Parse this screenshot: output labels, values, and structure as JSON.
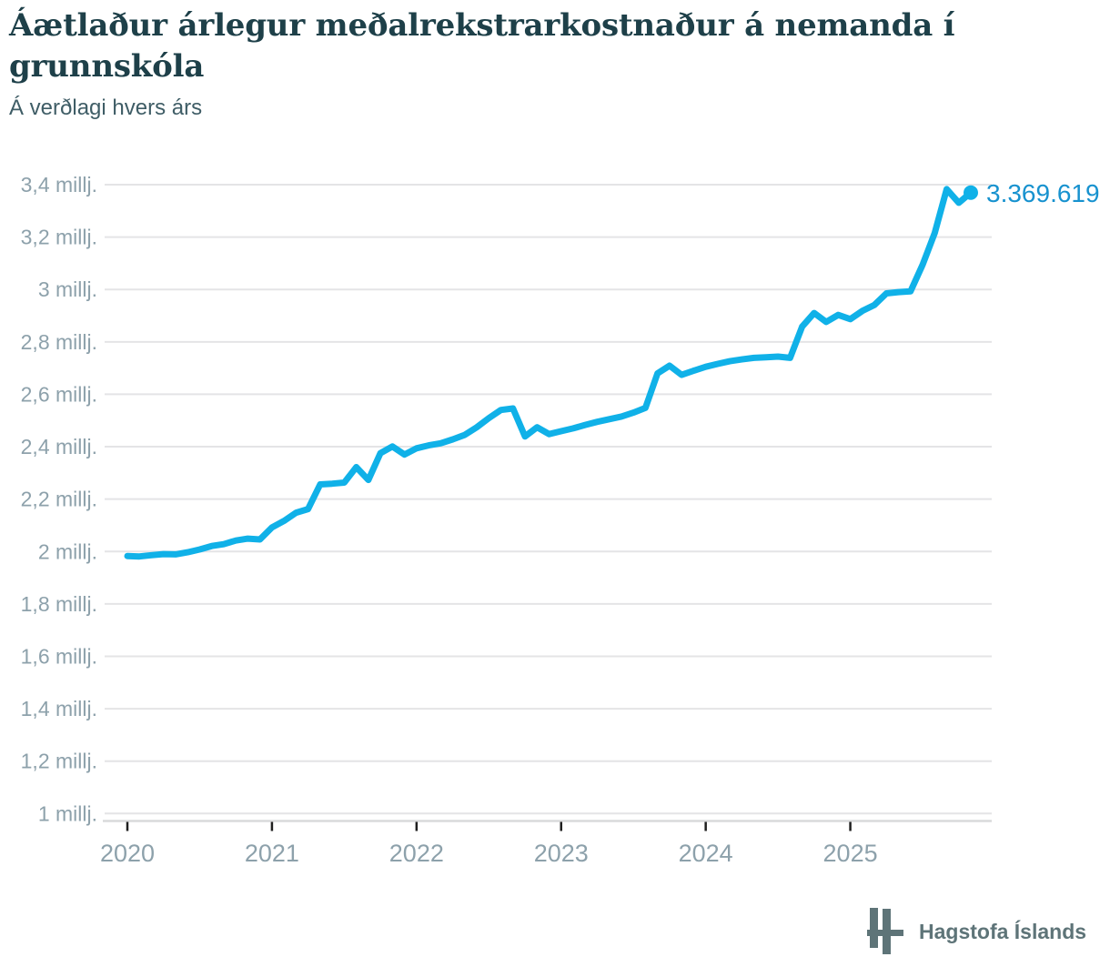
{
  "header": {
    "title": "Áætlaður árlegur meðalrekstrarkostnaður á nemanda í grunnskóla",
    "subtitle": "Á verðlagi hvers árs"
  },
  "footer": {
    "brand": "Hagstofa Íslands",
    "logo": "hagstofa-islands-h-mark"
  },
  "colors": {
    "line": "#10b1e8",
    "value_label": "#1792cf",
    "grid": "#e4e4e6",
    "axis_line": "#d9dadb",
    "tick": "#1f1f1f",
    "axis_label": "#8da1ab",
    "title": "#1e4049",
    "subtitle": "#3f5d66",
    "brand": "#5e7478"
  },
  "chart_data": {
    "type": "line",
    "title": "Áætlaður árlegur meðalrekstrarkostnaður á nemanda í grunnskóla",
    "subtitle": "Á verðlagi hvers árs",
    "y_unit": "millj.",
    "grid": true,
    "legend": false,
    "ylim": [
      1.0,
      3.4
    ],
    "y_tick_values": [
      3.4,
      3.2,
      3.0,
      2.8,
      2.6,
      2.4,
      2.2,
      2.0,
      1.8,
      1.6,
      1.4,
      1.2,
      1.0
    ],
    "y_tick_labels": [
      "3,4 millj.",
      "3,2 millj.",
      "3 millj.",
      "2,8 millj.",
      "2,6 millj.",
      "2,4 millj.",
      "2,2 millj.",
      "2 millj.",
      "1,8 millj.",
      "1,6 millj.",
      "1,4 millj.",
      "1,2 millj.",
      "1 millj."
    ],
    "x_tick_labels": [
      "2020",
      "2021",
      "2022",
      "2023",
      "2024",
      "2025"
    ],
    "x": [
      "2020-01",
      "2020-02",
      "2020-03",
      "2020-04",
      "2020-05",
      "2020-06",
      "2020-07",
      "2020-08",
      "2020-09",
      "2020-10",
      "2020-11",
      "2020-12",
      "2021-01",
      "2021-02",
      "2021-03",
      "2021-04",
      "2021-05",
      "2021-06",
      "2021-07",
      "2021-08",
      "2021-09",
      "2021-10",
      "2021-11",
      "2021-12",
      "2022-01",
      "2022-02",
      "2022-03",
      "2022-04",
      "2022-05",
      "2022-06",
      "2022-07",
      "2022-08",
      "2022-09",
      "2022-10",
      "2022-11",
      "2022-12",
      "2023-01",
      "2023-02",
      "2023-03",
      "2023-04",
      "2023-05",
      "2023-06",
      "2023-07",
      "2023-08",
      "2023-09",
      "2023-10",
      "2023-11",
      "2023-12",
      "2024-01",
      "2024-02",
      "2024-03",
      "2024-04",
      "2024-05",
      "2024-06",
      "2024-07",
      "2024-08",
      "2024-09",
      "2024-10",
      "2024-11",
      "2024-12",
      "2025-01",
      "2025-02",
      "2025-03",
      "2025-04",
      "2025-05",
      "2025-06",
      "2025-07",
      "2025-08",
      "2025-09",
      "2025-10",
      "2025-11"
    ],
    "series": [
      {
        "name": "Áætlaður árlegur meðalrekstrarkostnaður á nemanda í grunnskóla (millj. kr.)",
        "values": [
          1.983,
          1.981,
          1.986,
          1.99,
          1.989,
          1.997,
          2.008,
          2.021,
          2.028,
          2.042,
          2.049,
          2.046,
          2.092,
          2.117,
          2.148,
          2.162,
          2.256,
          2.259,
          2.263,
          2.322,
          2.273,
          2.375,
          2.401,
          2.37,
          2.394,
          2.405,
          2.413,
          2.428,
          2.445,
          2.474,
          2.509,
          2.54,
          2.546,
          2.439,
          2.474,
          2.448,
          2.459,
          2.47,
          2.483,
          2.495,
          2.505,
          2.515,
          2.53,
          2.548,
          2.68,
          2.709,
          2.674,
          2.69,
          2.705,
          2.716,
          2.726,
          2.733,
          2.739,
          2.741,
          2.744,
          2.739,
          2.858,
          2.91,
          2.876,
          2.903,
          2.887,
          2.918,
          2.941,
          2.985,
          2.99,
          2.993,
          3.094,
          3.215,
          3.383,
          3.331,
          3.369619
        ]
      }
    ],
    "last_value": 3369619,
    "last_value_label": "3.369.619"
  }
}
